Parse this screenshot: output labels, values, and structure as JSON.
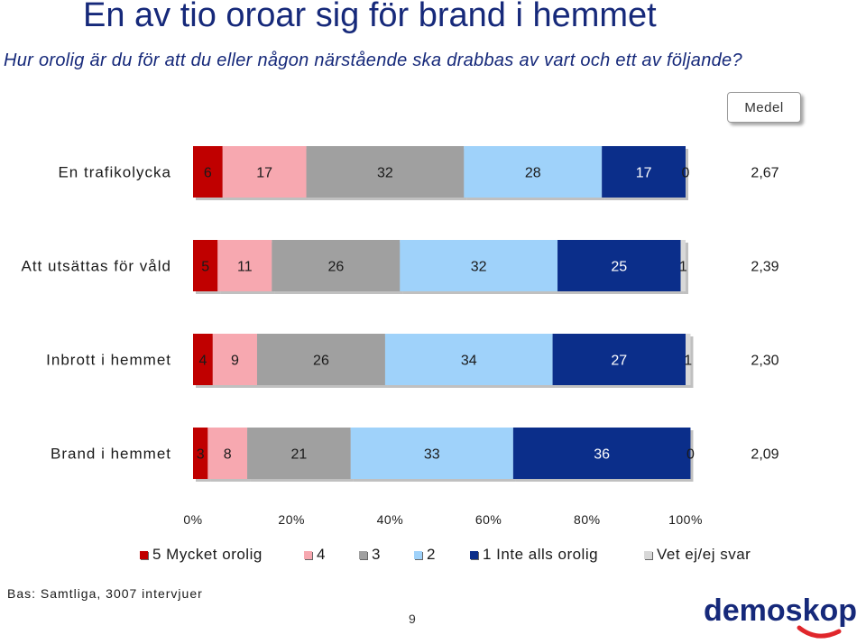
{
  "title": "En av tio oroar sig för brand i hemmet",
  "subtitle": "Hur orolig är du för att du eller någon närstående ska drabbas av vart och ett av följande?",
  "medel_label": "Medel",
  "chart_data": {
    "type": "bar",
    "orientation": "horizontal",
    "stacked": true,
    "percent_stacked": true,
    "categories": [
      "En trafikolycka",
      "Att utsättas för våld",
      "Inbrott i hemmet",
      "Brand i hemmet"
    ],
    "series": [
      {
        "name": "5 Mycket orolig",
        "color": "#c00000",
        "values": [
          6,
          5,
          4,
          3
        ]
      },
      {
        "name": "4",
        "color": "#f7a8b0",
        "values": [
          17,
          11,
          9,
          8
        ]
      },
      {
        "name": "3",
        "color": "#a0a0a0",
        "values": [
          32,
          26,
          26,
          21
        ]
      },
      {
        "name": "2",
        "color": "#9fd2fa",
        "values": [
          28,
          32,
          34,
          33
        ]
      },
      {
        "name": "1 Inte alls orolig",
        "color": "#0b2e8a",
        "values": [
          17,
          25,
          27,
          36
        ]
      },
      {
        "name": "Vet ej/ej svar",
        "color": "#d8d8d8",
        "values": [
          0,
          1,
          1,
          0
        ]
      }
    ],
    "means": [
      "2,67",
      "2,39",
      "2,30",
      "2,09"
    ],
    "x_ticks": [
      "0%",
      "20%",
      "40%",
      "60%",
      "80%",
      "100%"
    ],
    "xlim": [
      0,
      100
    ],
    "legend_position": "bottom",
    "grid": false
  },
  "base_text": "Bas: Samtliga, 3007 intervjuer",
  "page_number": "9",
  "logo_text": "demoskop"
}
